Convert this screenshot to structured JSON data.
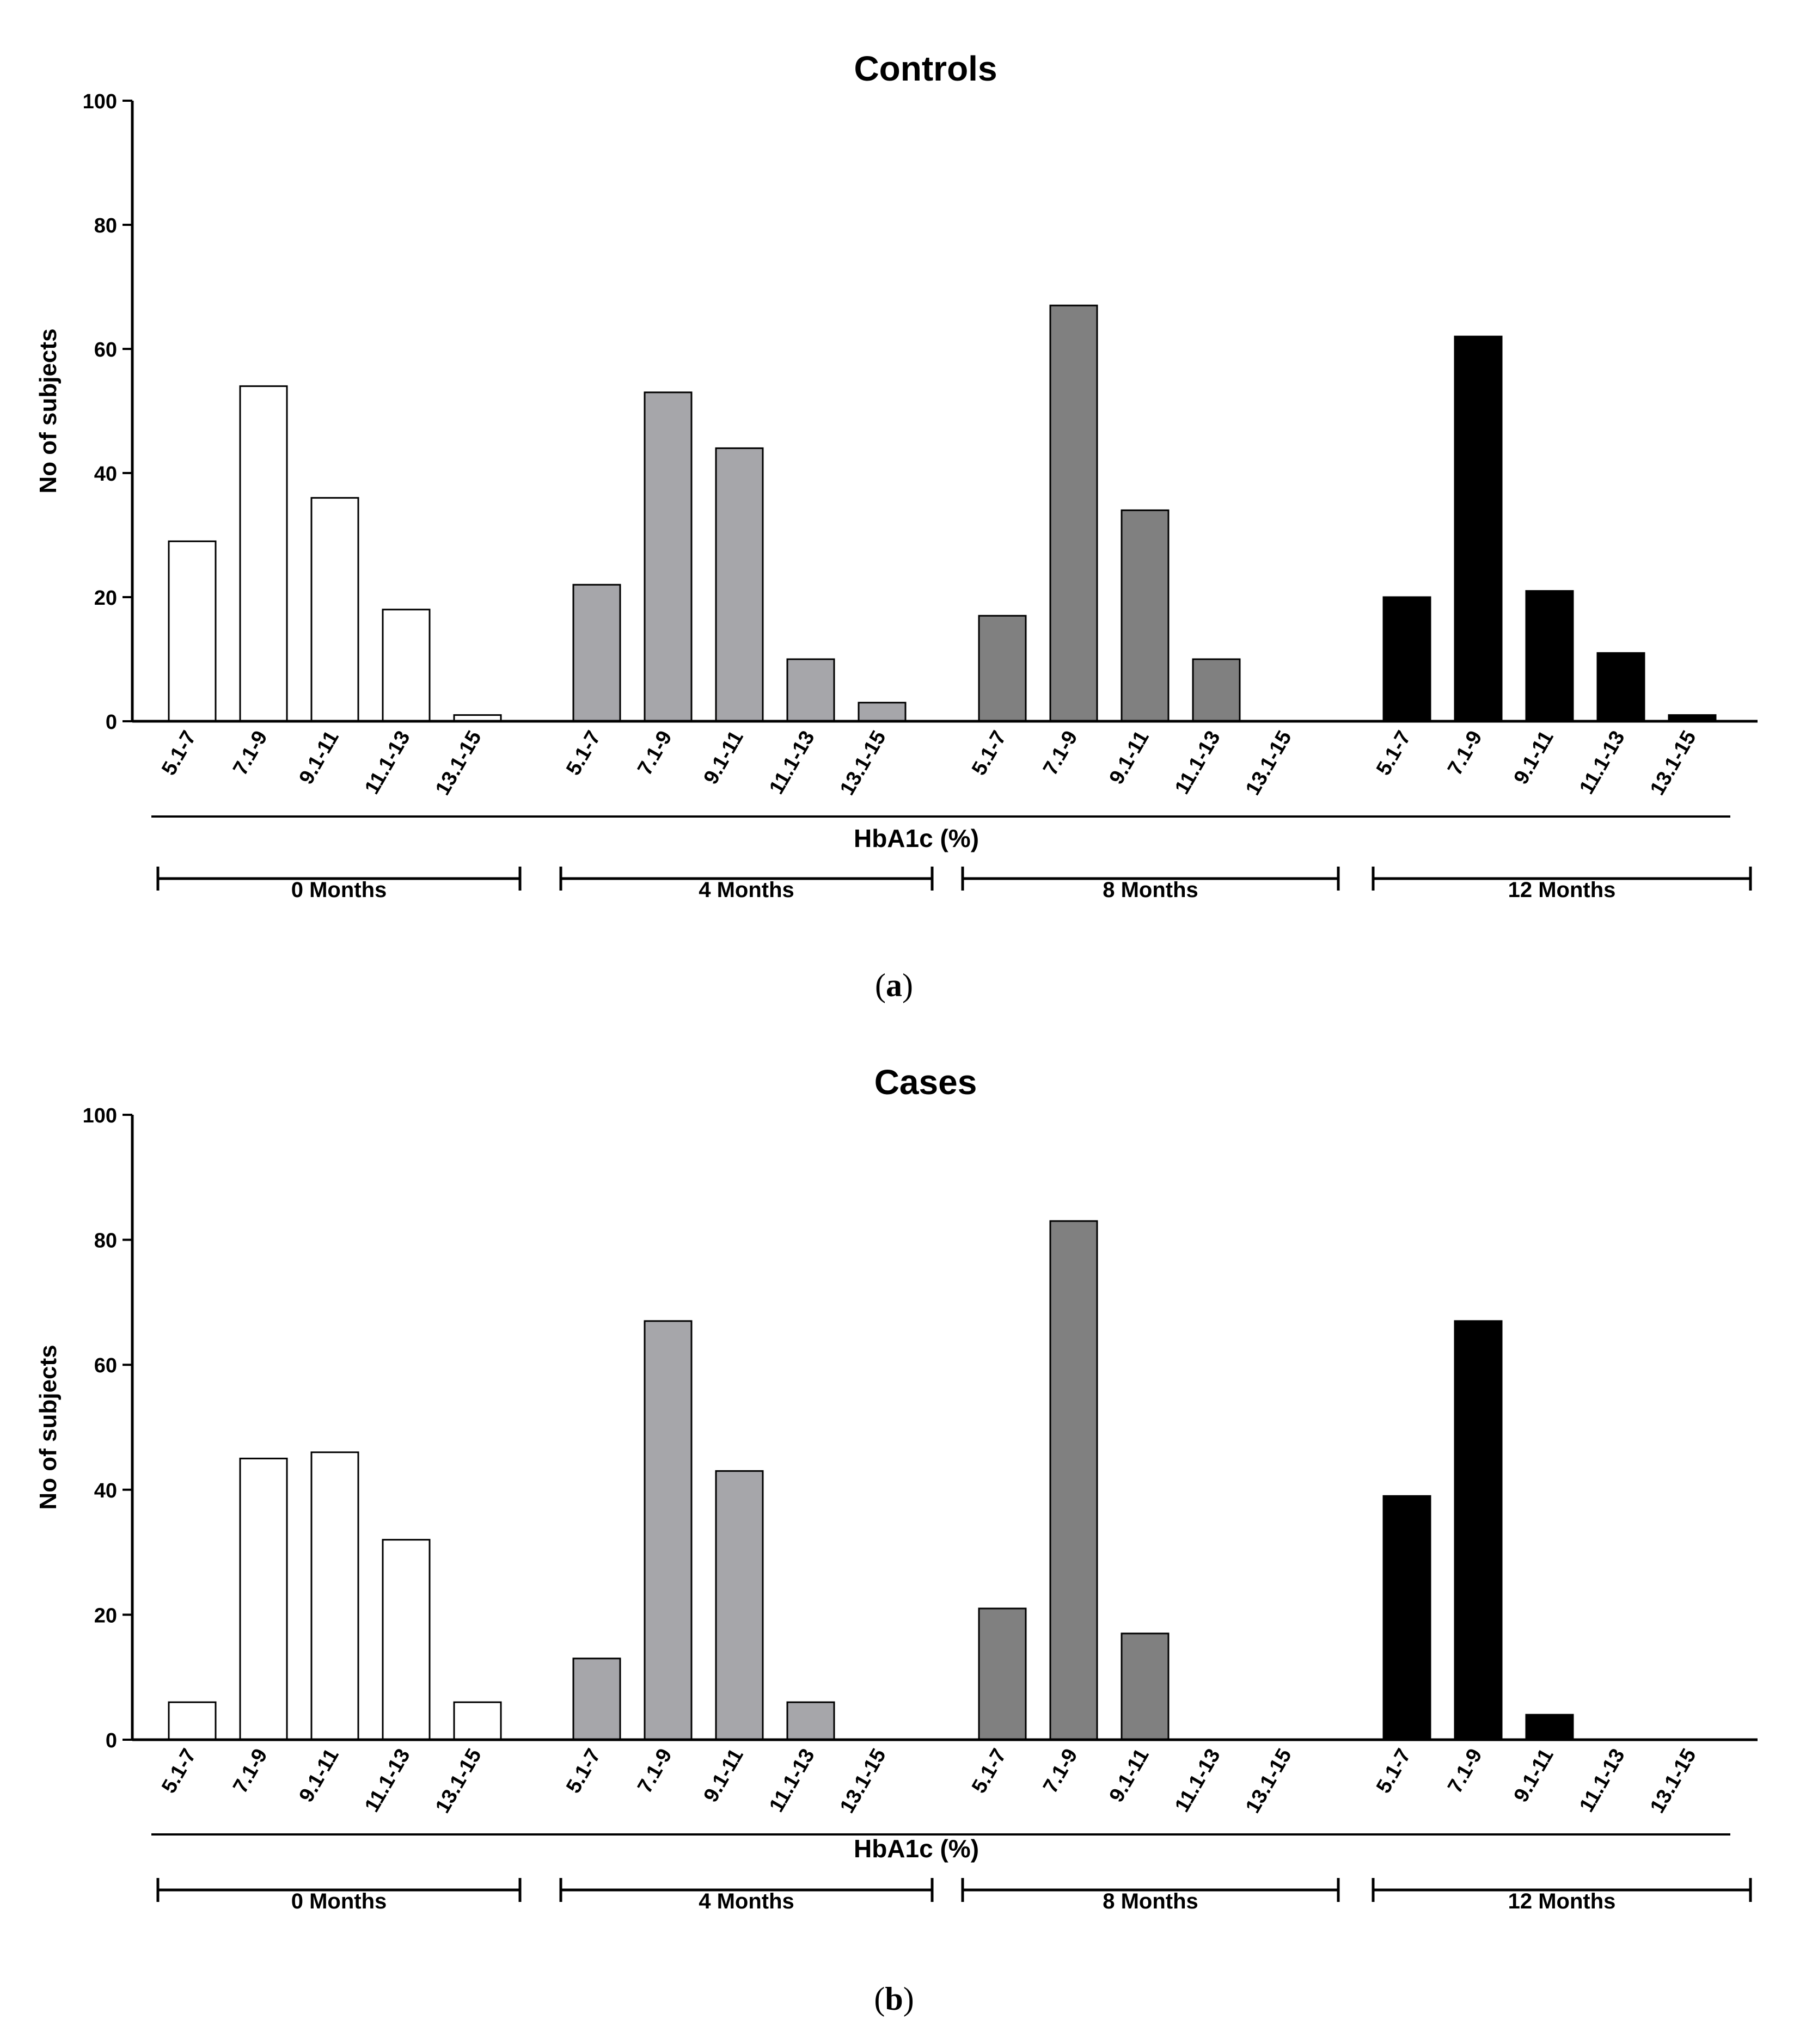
{
  "figure": {
    "panels": [
      {
        "label": "(a)",
        "letter": "a",
        "chart_data": {
          "type": "bar",
          "title": "Controls",
          "ylabel": "No of subjects",
          "xlabel": "HbA1c (%)",
          "ylim": [
            0,
            100
          ],
          "yticks": [
            0,
            20,
            40,
            60,
            80,
            100
          ],
          "grid": false,
          "categories": [
            "5.1-7",
            "7.1-9",
            "9.1-11",
            "11.1-13",
            "13.1-15"
          ],
          "series": [
            {
              "name": "0 Months",
              "color": "#ffffff",
              "values": [
                29,
                54,
                36,
                18,
                1
              ]
            },
            {
              "name": "4 Months",
              "color": "#a6a6aa",
              "values": [
                22,
                53,
                44,
                10,
                3
              ]
            },
            {
              "name": "8 Months",
              "color": "#808080",
              "values": [
                17,
                67,
                34,
                10,
                0
              ]
            },
            {
              "name": "12 Months",
              "color": "#000000",
              "values": [
                20,
                62,
                21,
                11,
                1
              ]
            }
          ]
        }
      },
      {
        "label": "(b)",
        "letter": "b",
        "chart_data": {
          "type": "bar",
          "title": "Cases",
          "ylabel": "No of subjects",
          "xlabel": "HbA1c (%)",
          "ylim": [
            0,
            100
          ],
          "yticks": [
            0,
            20,
            40,
            60,
            80,
            100
          ],
          "grid": false,
          "categories": [
            "5.1-7",
            "7.1-9",
            "9.1-11",
            "11.1-13",
            "13.1-15"
          ],
          "series": [
            {
              "name": "0 Months",
              "color": "#ffffff",
              "values": [
                6,
                45,
                46,
                32,
                6
              ]
            },
            {
              "name": "4 Months",
              "color": "#a6a6aa",
              "values": [
                13,
                67,
                43,
                6,
                0
              ]
            },
            {
              "name": "8 Months",
              "color": "#808080",
              "values": [
                21,
                83,
                17,
                0,
                0
              ]
            },
            {
              "name": "12 Months",
              "color": "#000000",
              "values": [
                39,
                67,
                4,
                0,
                0
              ]
            }
          ]
        }
      }
    ]
  }
}
